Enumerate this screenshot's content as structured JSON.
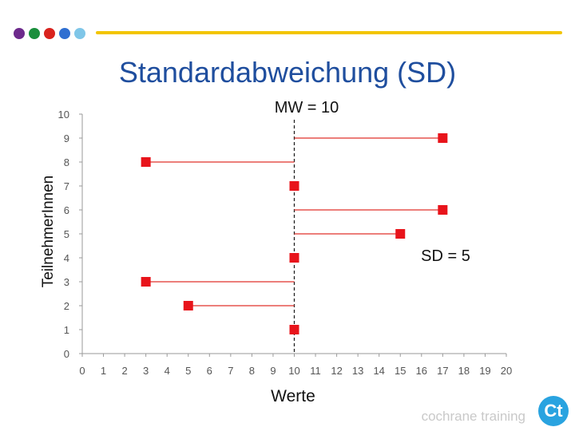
{
  "slide": {
    "title": "Standardabweichung (SD)",
    "brand": "cochrane training",
    "dot_colors": [
      "#6d2a8c",
      "#1a8f3c",
      "#d9231e",
      "#2f6fd1",
      "#7fc6e8"
    ],
    "line_color": "#f2c500",
    "title_color": "#1f4e9e"
  },
  "chart_data": {
    "type": "scatter",
    "title": "",
    "xlabel": "Werte",
    "ylabel": "TeilnehmerInnen",
    "xlim": [
      0,
      20
    ],
    "ylim": [
      0,
      10
    ],
    "x_ticks": [
      0,
      1,
      2,
      3,
      4,
      5,
      6,
      7,
      8,
      9,
      10,
      11,
      12,
      13,
      14,
      15,
      16,
      17,
      18,
      19,
      20
    ],
    "y_ticks": [
      0,
      1,
      2,
      3,
      4,
      5,
      6,
      7,
      8,
      9,
      10
    ],
    "grid": false,
    "mean": 10,
    "points": [
      {
        "x": 10,
        "y": 1
      },
      {
        "x": 5,
        "y": 2
      },
      {
        "x": 3,
        "y": 3
      },
      {
        "x": 10,
        "y": 4
      },
      {
        "x": 15,
        "y": 5
      },
      {
        "x": 17,
        "y": 6
      },
      {
        "x": 10,
        "y": 7
      },
      {
        "x": 3,
        "y": 8
      },
      {
        "x": 17,
        "y": 9
      }
    ],
    "marker_color": "#e8141b",
    "deviation_line_color": "#e0302b",
    "annotations": {
      "mean_label": "MW = 10",
      "sd_label": "SD = 5"
    }
  }
}
